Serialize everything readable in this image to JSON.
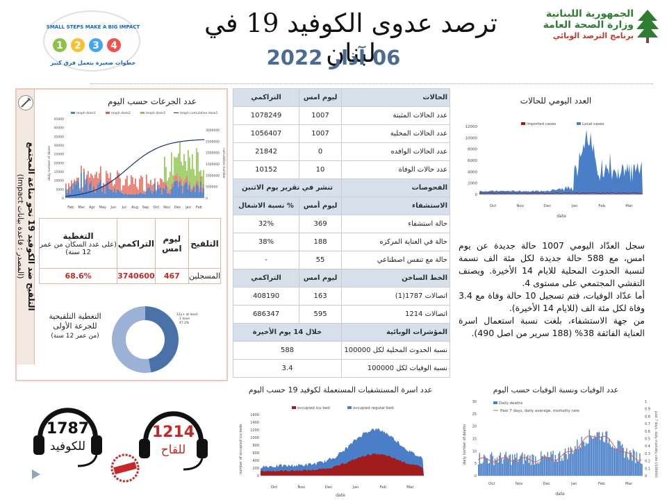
{
  "header": {
    "title": "ترصد عدوى الكوفيد 19 في لبنان",
    "date": "06 آذار 2022",
    "ministry_line1": "الجمهورية اللبنانية",
    "ministry_line2": "وزارة الصحة العامة",
    "ministry_line3": "برنامج الترصد الوبائي",
    "campaign_logo_line1": "SMALL STEPS MAKE A BIG IMPACT",
    "campaign_logo_line2": "خطوات صغيرة بتعمل فرق كبير"
  },
  "vaccine_panel": {
    "side_title": "التلقيح ضد الكوفيد 19 نحو مناعة المجتمع",
    "side_source": "(المصدر : قاعدة بيانات Impact)",
    "chart_title": "عدد الجرعات حسب اليوم",
    "table": {
      "col_vaccination": "التلقيح",
      "col_yesterday": "ليوم امس",
      "col_cumulative": "التراكمي",
      "col_coverage": "التغطية",
      "col_coverage_note": "(على عدد السكان من عمر 12 سنة)",
      "row_label": "المسجلين",
      "yesterday": "467",
      "cumulative": "3740600",
      "coverage": "68.6%"
    },
    "donut_label": "التغطية التلقيحية للجرعة الأولى",
    "donut_note": "(من عمر 12 سنة)",
    "donut_slice_label_1": "12y+ at least",
    "donut_slice_label_2": "1 dose",
    "donut_slice_label_3": "47.2%",
    "donut_fraction": 0.472
  },
  "stats": {
    "cases_header": "الحالات",
    "yesterday_header": "ليوم امس",
    "cumulative_header": "التراكمي",
    "rows": [
      {
        "label": "عدد الحالات المثبتة",
        "yesterday": "1007",
        "cumulative": "1078249"
      },
      {
        "label": "عدد الحالات المحلية",
        "yesterday": "1007",
        "cumulative": "1056407"
      },
      {
        "label": "عدد الحالات الوافده",
        "yesterday": "0",
        "cumulative": "21842"
      },
      {
        "label": "عدد حالات الوفاة",
        "yesterday": "10",
        "cumulative": "10152"
      }
    ],
    "tests_header": "الفحوصات",
    "tests_note": "تنشر في تقرير يوم الاثنين",
    "hosp_header": "الاستشفاء",
    "hosp_yesterday_header": "ليوم أمس",
    "hosp_occupancy_header": "% نسبة الاشغال",
    "hosp_rows": [
      {
        "label": "حالة استشفاء",
        "yesterday": "369",
        "occupancy": "32%"
      },
      {
        "label": "حالة في العناية المركزه",
        "yesterday": "188",
        "occupancy": "38%"
      },
      {
        "label": "حالة مع تنفس اصطناعي",
        "yesterday": "55",
        "occupancy": "-"
      }
    ],
    "hotline_header": "الخط الساخن",
    "hotline_yesterday_header": "ليوم امس",
    "hotline_cumulative_header": "التراكمي",
    "hotline_rows": [
      {
        "label": "اتصالات 1787(1)",
        "yesterday": "163",
        "cumulative": "408190"
      },
      {
        "label": "اتصالات 1214",
        "yesterday": "595",
        "cumulative": "686347"
      }
    ],
    "indicators_header": "المؤشرات الوبائية",
    "indicators_period": "خلال 14 يوم الأخيرة",
    "indicator_rows": [
      {
        "label": "نسبة الحدوث المحلية لكل 100000",
        "value": "588"
      },
      {
        "label": "نسبة الوفيات لكل 100000",
        "value": "3.4"
      }
    ]
  },
  "daily_chart": {
    "title": "العدد اليومي للحالات",
    "legend_imported": "imported cases",
    "legend_local": "Local cases",
    "y_ticks": [
      "12000",
      "10000",
      "8000",
      "6000",
      "4000",
      "2000",
      "0"
    ],
    "x_months": [
      "Oct",
      "Nov",
      "Dec",
      "Jan",
      "Feb",
      "Mar"
    ],
    "xlabel": "date",
    "colors": {
      "local": "#4a7fc8",
      "imported": "#9b1c1c"
    }
  },
  "summary": {
    "p1": "سجل العدّاد اليومي 1007 حالة جديدة عن يوم امس، مع 588 حالة جديدة لكل مئة الف نسمة لنسبة الحدوث المحلية للايام 14 الأخيرة. ويصنف التفشي المجتمعي على مستوى 4.",
    "p2": "أما عدّاد الوفيات، فتم تسجيل 10 حالة وفاة مع 3.4 وفاة لكل مئة الف (للايام 14 الأخيرة).",
    "p3": "من جهة الاستشفاء، بلغت نسبة استعمال اسرة العناية الفائقة 38% (188 سرير من اصل 490)."
  },
  "beds_chart": {
    "title": "عدد اسرة المستشفيات المستعملة لكوفيد 19 حسب اليوم",
    "legend_icu": "occupied icu bed",
    "legend_regular": "occupied regular bed",
    "ylabel": "number of occupied icu beds",
    "y_ticks": [
      "1600",
      "1400",
      "1200",
      "1000",
      "800",
      "600",
      "400",
      "200",
      "0"
    ],
    "x_months": [
      "Oct",
      "Nov",
      "Dec",
      "Jan",
      "Feb",
      "Mar"
    ],
    "xlabel": "date",
    "colors": {
      "icu": "#a11d1d",
      "regular": "#4a7fc8"
    }
  },
  "deaths_chart": {
    "title": "عدد الوفيات ونسبة الوفيات حسب اليوم",
    "legend_deaths": "Daily deaths",
    "legend_rate": "Past 7 days, daily average, mortality rate",
    "ylabel": "daily number of deaths",
    "y2label": "past 7 days, daily mortality rate (/100000)",
    "y_ticks": [
      "30",
      "25",
      "20",
      "15",
      "10",
      "5",
      "0"
    ],
    "y2_ticks": [
      "1",
      "0.9",
      "0.8",
      "0.7",
      "0.6",
      "0.5",
      "0.4",
      "0.3",
      "0.2",
      "0.1",
      "0"
    ],
    "x_months": [
      "Oct",
      "Nov",
      "Dec",
      "Jan",
      "Feb",
      "Mar"
    ],
    "xlabel": "date",
    "colors": {
      "deaths": "#4a7fc8",
      "rate": "#e05a4a"
    }
  },
  "vax_chart": {
    "legend": [
      "moph dose1",
      "moph dose2",
      "moph dose3",
      "moph cumulative dose1"
    ],
    "y_ticks": [
      "45000",
      "40000",
      "35000",
      "30000",
      "25000",
      "20000",
      "15000",
      "10000",
      "5000",
      "0"
    ],
    "y2_ticks": [
      "3000000",
      "2500000",
      "2000000",
      "1500000",
      "1000000",
      "500000",
      "0"
    ],
    "ylabel": "daily number of doses",
    "y2label": "cumulative number",
    "x_months": [
      "Feb",
      "Mar",
      "Apr",
      "May",
      "Jun",
      "Jul",
      "Aug",
      "Sep",
      "Oct",
      "Nov",
      "Dec",
      "Jan",
      "Feb"
    ],
    "colors": {
      "dose1": "#4a7fc8",
      "dose2": "#e05a4a",
      "dose3": "#8bc34a",
      "cumulative": "#1a2f6b"
    }
  },
  "hotlines": {
    "covid_number": "1787",
    "covid_label": "للكوفيد",
    "vax_number": "1214",
    "vax_label": "للقاح"
  }
}
